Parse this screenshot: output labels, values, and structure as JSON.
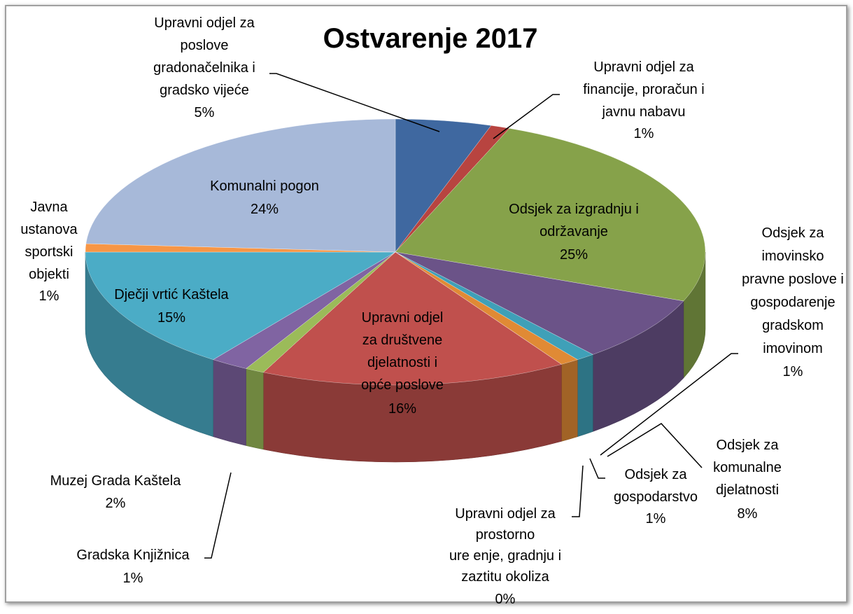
{
  "chart_data": {
    "type": "pie3d",
    "title": "Ostvarenje 2017",
    "categories": [
      "Upravni odjel za\nposlove\ngradonačelnika i\ngradsko vijeće",
      "Upravni odjel za\nfinancije, proračun i\njavnu nabavu",
      "Odsjek za izgradnju i\nodržavanje",
      "Odsjek za\nkomunalne\ndjelatnosti",
      "Odsjek za\nimovinsko\npravne poslove i\ngospodarenje\ngradskom\nimovinom",
      "Odsjek za\ngospodarstvo",
      "Upravni odjel za\nprostorno\nure  enje, gradnju i\nzaztitu okoliza",
      "Upravni odjel\nza društvene\ndjelatnosti i\nopće poslove",
      "Gradska Knjižnica",
      "Muzej Grada Kaštela",
      "Dječji vrtić Kaštela",
      "Javna\nustanova\nsportski\nobjekti",
      "Komunalni pogon"
    ],
    "values": [
      5,
      1,
      25,
      8,
      1,
      1,
      0,
      16,
      1,
      2,
      15,
      1,
      24
    ],
    "value_labels": [
      "5%",
      "1%",
      "25%",
      "8%",
      "1%",
      "1%",
      "0%",
      "16%",
      "1%",
      "2%",
      "15%",
      "1%",
      "24%"
    ],
    "colors": [
      "#3f68a0",
      "#b84440",
      "#86a24a",
      "#6b5388",
      "#3fa0b8",
      "#e08a35",
      "#9a9a9a",
      "#c0504d",
      "#9bbb59",
      "#8064a2",
      "#4bacc6",
      "#f79646",
      "#a7b9d9"
    ]
  }
}
